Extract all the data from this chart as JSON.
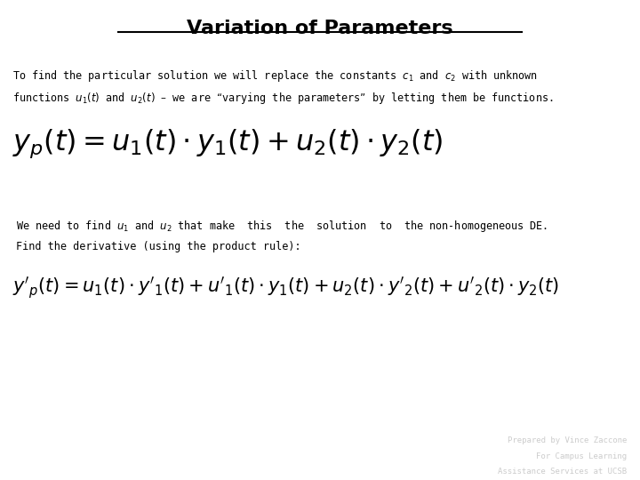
{
  "title": "Variation of Parameters",
  "background_color": "#ffffff",
  "text_color": "#000000",
  "footnote_color": "#cccccc",
  "intro_line1": "To find the particular solution we will replace the constants $c_1$ and $c_2$ with unknown",
  "intro_line2": "functions $u_1(t)$ and $u_2(t)$ – we are “varying the parameters” by letting them be functions.",
  "formula1": "$y_p(t) = u_1(t) \\cdot y_1(t) + u_2(t) \\cdot y_2(t)$",
  "mid_line1": "We need to find $u_1$ and $u_2$ that make  this  the  solution  to  the non-homogeneous DE.",
  "mid_line2": "Find the derivative (using the product rule):",
  "formula2": "$y'_p(t) = u_1(t) \\cdot y'_1(t) + u'_1(t) \\cdot y_1(t) + u_2(t) \\cdot y'_2(t) + u'_2(t) \\cdot y_2(t)$",
  "footnote1": "Prepared by Vince Zaccone",
  "footnote2": "For Campus Learning",
  "footnote3": "Assistance Services at UCSB"
}
